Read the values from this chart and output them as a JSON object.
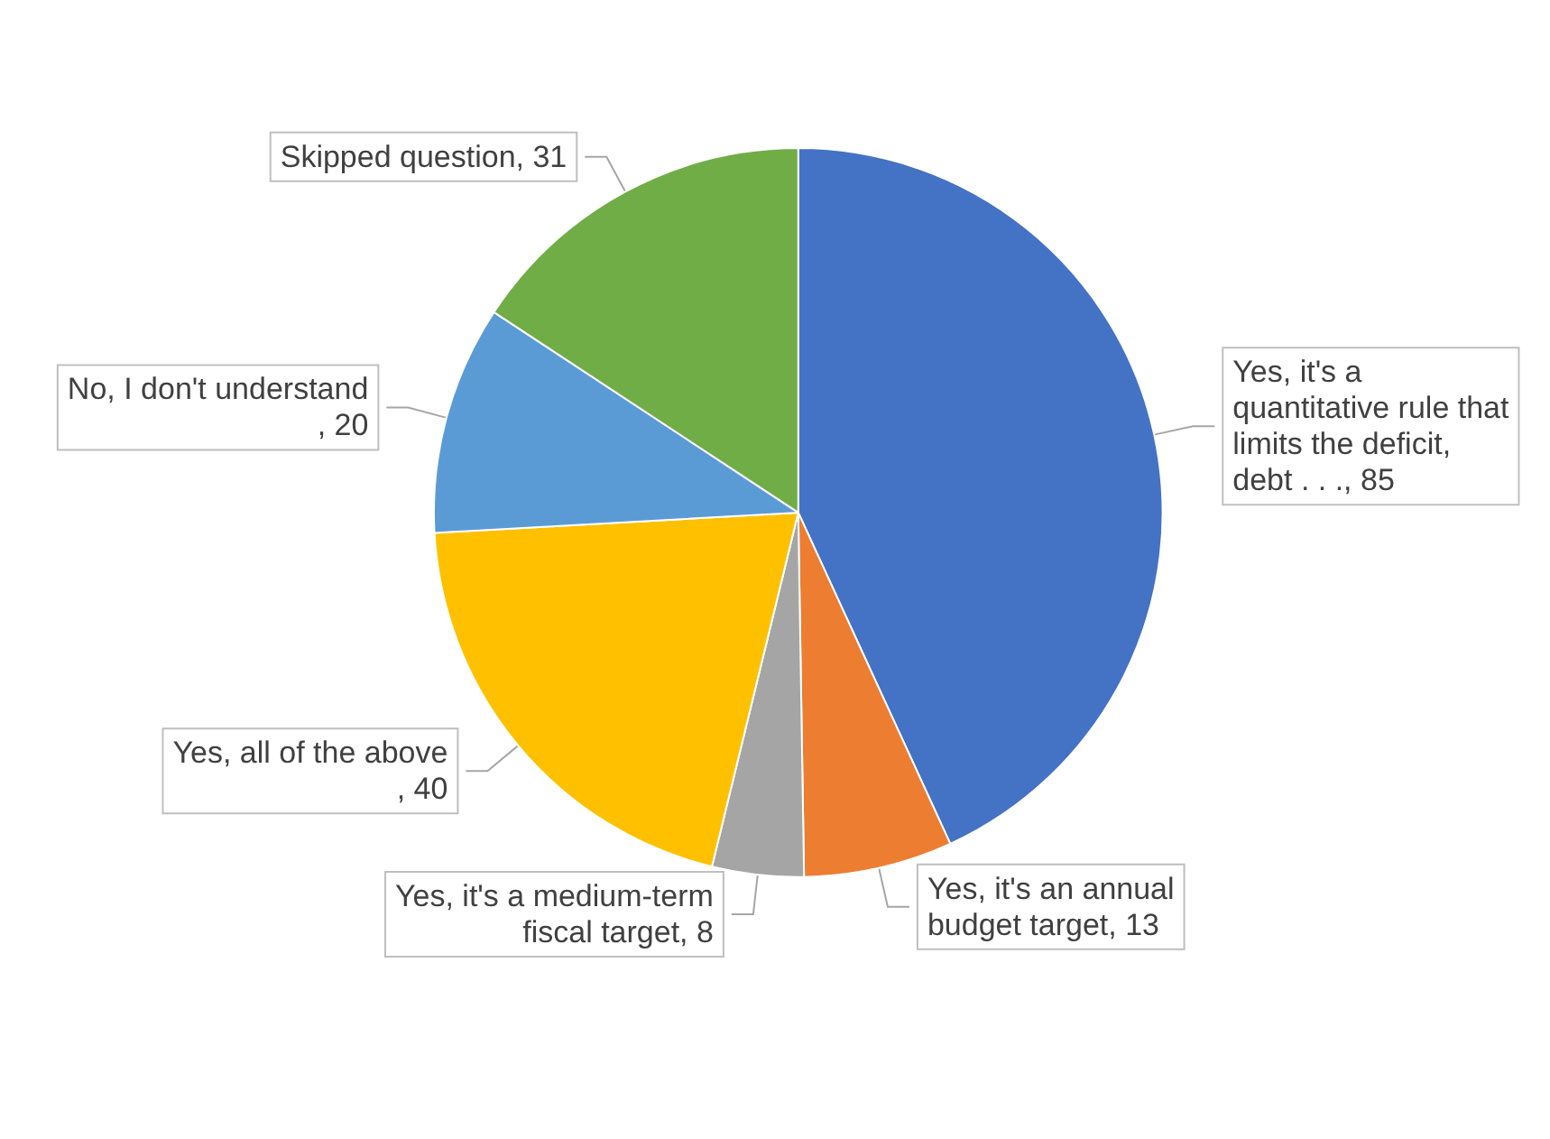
{
  "chart_data": {
    "type": "pie",
    "categories": [
      "Yes, it's a quantitative rule that limits the deficit, debt . . .",
      "Yes, it's an annual budget target",
      "Yes, it's a medium-term fiscal target",
      "Yes, all of the above",
      "No, I don't understand",
      "Skipped question"
    ],
    "values": [
      85,
      13,
      8,
      40,
      20,
      31
    ],
    "colors": [
      "#4472c4",
      "#ed7d31",
      "#a5a5a5",
      "#ffc000",
      "#5b9bd5",
      "#70ad47"
    ],
    "value_labels": [
      ", 85",
      ", 13",
      ", 8",
      ", 40",
      ", 20",
      ", 31"
    ],
    "legend": false
  }
}
